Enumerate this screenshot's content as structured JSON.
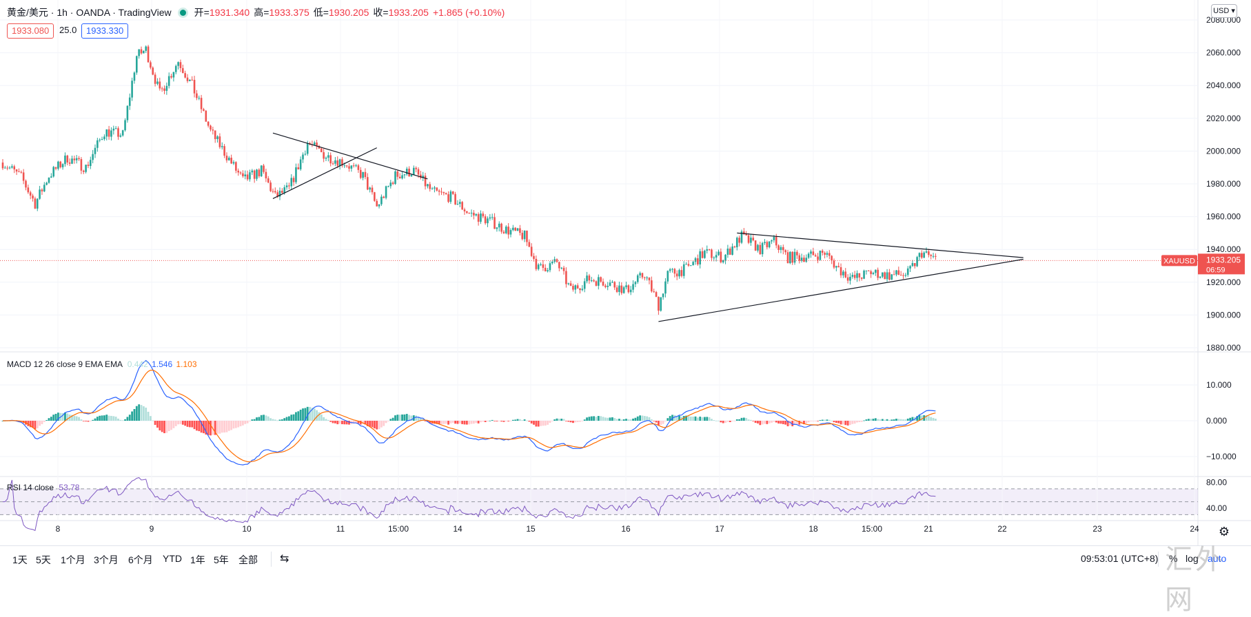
{
  "header": {
    "symbol_title": "黄金/美元 · 1h · OANDA · TradingView",
    "ohlc": [
      {
        "k": "开",
        "v": "1931.340"
      },
      {
        "k": "高",
        "v": "1933.375"
      },
      {
        "k": "低",
        "v": "1930.205"
      },
      {
        "k": "收",
        "v": "1933.205"
      }
    ],
    "change": "+1.865 (+0.10%)",
    "bid": "1933.080",
    "spread": "25.0",
    "ask": "1933.330"
  },
  "price_axis": {
    "currency": "USD",
    "ticks": [
      "2080.000",
      "2060.000",
      "2040.000",
      "2020.000",
      "2000.000",
      "1980.000",
      "1960.000",
      "1940.000",
      "1920.000",
      "1900.000",
      "1880.000"
    ],
    "last_symbol": "XAUUSD",
    "last_price": "1933.205",
    "countdown": "06:59"
  },
  "macd": {
    "label": "MACD 12 26 close 9 EMA EMA",
    "hist_value": "0.442",
    "macd_value": "1.546",
    "signal_value": "1.103",
    "ticks": [
      "10.000",
      "0.000",
      "−10.000"
    ]
  },
  "rsi": {
    "label": "RSI 14 close",
    "value": "53.78",
    "ticks": [
      "80.00",
      "40.00"
    ]
  },
  "time_axis": {
    "labels": [
      "8",
      "9",
      "10",
      "11",
      "15:00",
      "14",
      "15",
      "16",
      "17",
      "18",
      "15:00",
      "21",
      "22",
      "23",
      "24"
    ]
  },
  "bottom_bar": {
    "ranges": [
      "1天",
      "5天",
      "1个月",
      "3个月",
      "6个月",
      "YTD",
      "1年",
      "5年",
      "全部"
    ],
    "clock": "09:53:01 (UTC+8)",
    "pct": "%",
    "log": "log",
    "auto": "auto"
  },
  "watermark": "汇外网",
  "colors": {
    "up": "#26a69a",
    "down": "#ef5350",
    "macd_line": "#2962ff",
    "signal_line": "#ff6d00",
    "hist_up_strong": "#26a69a",
    "hist_up_weak": "#b2dfdb",
    "hist_down_strong": "#ff5252",
    "hist_down_weak": "#ffcdd2",
    "rsi_line": "#7e57c2"
  },
  "chart_data": {
    "type": "candlestick",
    "y_range": [
      1875,
      2085
    ],
    "macd_range": [
      -13,
      16
    ],
    "rsi_range": [
      20,
      90
    ],
    "rsi_bands": [
      70,
      50,
      30
    ],
    "anchors": [
      {
        "t": 0,
        "p": 1993
      },
      {
        "t": 8,
        "p": 1984
      },
      {
        "t": 14,
        "p": 1968
      },
      {
        "t": 20,
        "p": 1985
      },
      {
        "t": 28,
        "p": 1996
      },
      {
        "t": 36,
        "p": 1990
      },
      {
        "t": 44,
        "p": 2012
      },
      {
        "t": 52,
        "p": 2010
      },
      {
        "t": 58,
        "p": 2058
      },
      {
        "t": 62,
        "p": 2062
      },
      {
        "t": 68,
        "p": 2035
      },
      {
        "t": 76,
        "p": 2055
      },
      {
        "t": 82,
        "p": 2040
      },
      {
        "t": 90,
        "p": 2012
      },
      {
        "t": 98,
        "p": 1995
      },
      {
        "t": 104,
        "p": 1982
      },
      {
        "t": 112,
        "p": 1988
      },
      {
        "t": 118,
        "p": 1972
      },
      {
        "t": 124,
        "p": 1977
      },
      {
        "t": 132,
        "p": 2005
      },
      {
        "t": 140,
        "p": 1997
      },
      {
        "t": 148,
        "p": 1993
      },
      {
        "t": 156,
        "p": 1985
      },
      {
        "t": 162,
        "p": 1966
      },
      {
        "t": 170,
        "p": 1985
      },
      {
        "t": 178,
        "p": 1988
      },
      {
        "t": 186,
        "p": 1975
      },
      {
        "t": 194,
        "p": 1972
      },
      {
        "t": 202,
        "p": 1962
      },
      {
        "t": 210,
        "p": 1958
      },
      {
        "t": 218,
        "p": 1952
      },
      {
        "t": 226,
        "p": 1948
      },
      {
        "t": 232,
        "p": 1928
      },
      {
        "t": 240,
        "p": 1932
      },
      {
        "t": 246,
        "p": 1915
      },
      {
        "t": 254,
        "p": 1922
      },
      {
        "t": 262,
        "p": 1920
      },
      {
        "t": 270,
        "p": 1915
      },
      {
        "t": 278,
        "p": 1925
      },
      {
        "t": 284,
        "p": 1906
      },
      {
        "t": 288,
        "p": 1925
      },
      {
        "t": 296,
        "p": 1928
      },
      {
        "t": 304,
        "p": 1938
      },
      {
        "t": 312,
        "p": 1935
      },
      {
        "t": 320,
        "p": 1948
      },
      {
        "t": 328,
        "p": 1940
      },
      {
        "t": 334,
        "p": 1945
      },
      {
        "t": 340,
        "p": 1935
      },
      {
        "t": 350,
        "p": 1936
      },
      {
        "t": 356,
        "p": 1938
      },
      {
        "t": 362,
        "p": 1928
      },
      {
        "t": 368,
        "p": 1922
      },
      {
        "t": 376,
        "p": 1926
      },
      {
        "t": 384,
        "p": 1924
      },
      {
        "t": 392,
        "p": 1925
      },
      {
        "t": 398,
        "p": 1938
      },
      {
        "t": 404,
        "p": 1934
      }
    ],
    "trendlines": [
      {
        "p1": [
          117,
          1971
        ],
        "p2": [
          162,
          2002
        ]
      },
      {
        "p1": [
          117,
          2011
        ],
        "p2": [
          184,
          1983
        ]
      },
      {
        "p1": [
          284,
          1896
        ],
        "p2": [
          442,
          1934
        ]
      },
      {
        "p1": [
          318,
          1950
        ],
        "p2": [
          442,
          1935
        ]
      }
    ],
    "last_price": 1933.205
  }
}
